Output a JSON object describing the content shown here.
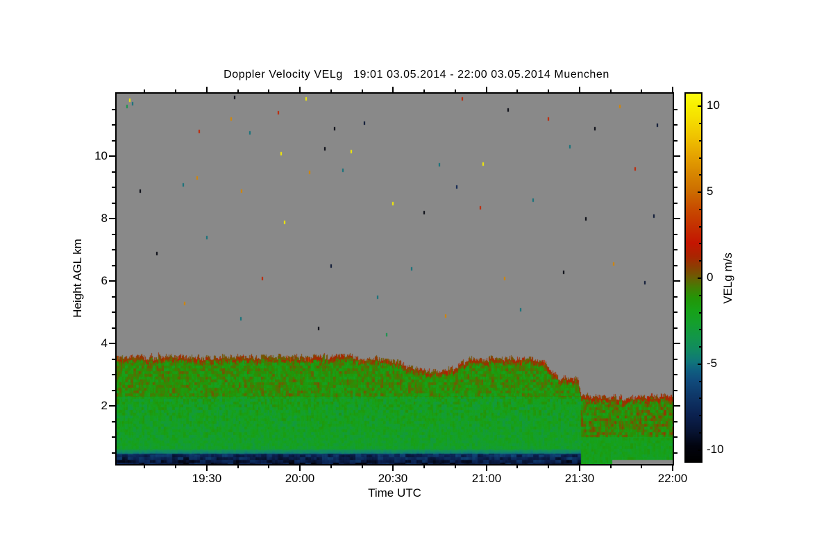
{
  "chart_data": {
    "type": "heatmap",
    "title": "Doppler Velocity VELg   19:01 03.05.2014 - 22:00 03.05.2014 Muenchen",
    "xlabel": "Time UTC",
    "ylabel": "Height AGL km",
    "colorbar_label": "VELg m/s",
    "x_range_utc": [
      "19:01",
      "22:00"
    ],
    "y_range_km": [
      0.13,
      12.0
    ],
    "value_range_ms": [
      -10.7,
      10.7
    ],
    "no_data_color": "#898989",
    "background_color": "#ffffff",
    "grid": false,
    "legend_position": "right-colorbar",
    "x_major_ticks": [
      {
        "t_min": 30,
        "label": "19:30"
      },
      {
        "t_min": 60,
        "label": "20:00"
      },
      {
        "t_min": 90,
        "label": "20:30"
      },
      {
        "t_min": 120,
        "label": "21:00"
      },
      {
        "t_min": 150,
        "label": "21:30"
      },
      {
        "t_min": 180,
        "label": "22:00"
      }
    ],
    "x_minor_ticks_min": [
      10,
      20,
      40,
      50,
      70,
      80,
      100,
      110,
      130,
      140,
      160,
      170
    ],
    "y_major_ticks": [
      {
        "h_km": 2,
        "label": "2"
      },
      {
        "h_km": 4,
        "label": "4"
      },
      {
        "h_km": 6,
        "label": "6"
      },
      {
        "h_km": 8,
        "label": "8"
      },
      {
        "h_km": 10,
        "label": "10"
      }
    ],
    "y_minor_ticks_km": [
      0.5,
      1,
      1.5,
      2.5,
      3,
      3.5,
      4.5,
      5,
      5.5,
      6.5,
      7,
      7.5,
      8.5,
      9,
      9.5,
      10.5,
      11,
      11.5
    ],
    "colorbar_ticks": [
      {
        "v": 10,
        "label": "10"
      },
      {
        "v": 5,
        "label": "5"
      },
      {
        "v": 0,
        "label": "0"
      },
      {
        "v": -5,
        "label": "-5"
      },
      {
        "v": -10,
        "label": "-10"
      }
    ],
    "colorbar_minor_step": 1,
    "colormap_stops": [
      {
        "v": -10.7,
        "c": "#000000"
      },
      {
        "v": -9.8,
        "c": "#02040f"
      },
      {
        "v": -9.0,
        "c": "#071331"
      },
      {
        "v": -8.0,
        "c": "#0b2150"
      },
      {
        "v": -7.0,
        "c": "#0e3566"
      },
      {
        "v": -6.0,
        "c": "#104b7c"
      },
      {
        "v": -5.4,
        "c": "#0f5f80"
      },
      {
        "v": -4.9,
        "c": "#10767a"
      },
      {
        "v": -4.2,
        "c": "#118a60"
      },
      {
        "v": -3.4,
        "c": "#129747"
      },
      {
        "v": -2.6,
        "c": "#14a02b"
      },
      {
        "v": -1.9,
        "c": "#17a117"
      },
      {
        "v": -1.2,
        "c": "#239507"
      },
      {
        "v": -0.6,
        "c": "#417f04"
      },
      {
        "v": 0.0,
        "c": "#6b5e03"
      },
      {
        "v": 0.6,
        "c": "#8a3f02"
      },
      {
        "v": 1.2,
        "c": "#a82501"
      },
      {
        "v": 2.0,
        "c": "#c41501"
      },
      {
        "v": 2.8,
        "c": "#c42b01"
      },
      {
        "v": 4.0,
        "c": "#c84b00"
      },
      {
        "v": 5.0,
        "c": "#cc6c00"
      },
      {
        "v": 6.0,
        "c": "#d78500"
      },
      {
        "v": 7.0,
        "c": "#e4a000"
      },
      {
        "v": 8.0,
        "c": "#eebd00"
      },
      {
        "v": 9.0,
        "c": "#f4d800"
      },
      {
        "v": 10.0,
        "c": "#f8ef00"
      },
      {
        "v": 10.7,
        "c": "#fbfb10"
      }
    ],
    "cloud_top_profile_min_km": [
      [
        1,
        3.6
      ],
      [
        10,
        3.58
      ],
      [
        20,
        3.62
      ],
      [
        30,
        3.56
      ],
      [
        40,
        3.6
      ],
      [
        50,
        3.58
      ],
      [
        60,
        3.55
      ],
      [
        70,
        3.6
      ],
      [
        80,
        3.56
      ],
      [
        88,
        3.5
      ],
      [
        94,
        3.3
      ],
      [
        100,
        3.12
      ],
      [
        106,
        3.1
      ],
      [
        111,
        3.3
      ],
      [
        114,
        3.5
      ],
      [
        125,
        3.55
      ],
      [
        135,
        3.5
      ],
      [
        139,
        3.42
      ],
      [
        141,
        3.1
      ],
      [
        143,
        2.92
      ],
      [
        148,
        2.88
      ],
      [
        149.5,
        2.85
      ],
      [
        150.5,
        2.35
      ],
      [
        160,
        2.3
      ],
      [
        166,
        2.28
      ],
      [
        172,
        2.35
      ],
      [
        179,
        2.3
      ]
    ],
    "layers": {
      "fringe_depth_km": 0.16,
      "fringe_v": 0.6,
      "fringe_noise": 1.1,
      "upper_min_h": 2.3,
      "upper_mottle_base": -1.1,
      "upper_mottle_noise": 1.7,
      "mid_min_h": 0.62,
      "mid_base": -2.1,
      "mid_noise": 1.15,
      "teal_min_h": 0.47,
      "teal_top_v": -3.6,
      "teal_bot_v": -4.8,
      "teal_noise": 0.5,
      "bottom_base": -7.3,
      "bottom_noise": 1.8,
      "bottom_band_end_min": 150.5,
      "right_section_start_min": 150.5,
      "right_upper_min_h": 1.0,
      "right_upper_base": -0.9,
      "right_upper_noise": 2.0,
      "right_lower_base": -2.1,
      "right_lower_noise": 1.0,
      "gray_strip_start_min": 160.5,
      "gray_strip_top_km": 0.28
    },
    "noise_specks_t_h_v": [
      [
        5.2,
        11.8,
        10
      ],
      [
        6.1,
        11.7,
        -5
      ],
      [
        4.4,
        11.6,
        -3.5
      ],
      [
        39,
        11.9,
        -10
      ],
      [
        53,
        11.4,
        2.5
      ],
      [
        37.9,
        11.2,
        6
      ],
      [
        27.6,
        10.8,
        2.5
      ],
      [
        43.9,
        10.75,
        -5
      ],
      [
        22.5,
        9.1,
        -5
      ],
      [
        26.9,
        9.3,
        6
      ],
      [
        8.6,
        8.9,
        -10
      ],
      [
        41.2,
        8.9,
        6
      ],
      [
        62,
        11.84,
        10
      ],
      [
        112.3,
        11.84,
        2.5
      ],
      [
        71.2,
        10.9,
        -10
      ],
      [
        80.8,
        11.07,
        -9
      ],
      [
        68,
        10.24,
        -10
      ],
      [
        76.5,
        10.16,
        10
      ],
      [
        104.9,
        9.73,
        -5
      ],
      [
        119,
        9.76,
        10
      ],
      [
        73.9,
        9.56,
        -5
      ],
      [
        63.1,
        9.49,
        6
      ],
      [
        110.5,
        9.02,
        -8
      ],
      [
        127,
        11.5,
        -10
      ],
      [
        140,
        11.2,
        2.5
      ],
      [
        155,
        10.9,
        -10
      ],
      [
        163,
        11.6,
        6
      ],
      [
        175,
        11.0,
        -9
      ],
      [
        147,
        10.3,
        -5
      ],
      [
        168,
        9.6,
        2.5
      ],
      [
        90,
        8.5,
        10
      ],
      [
        100,
        8.2,
        -10
      ],
      [
        118,
        8.35,
        2.5
      ],
      [
        135,
        8.6,
        -5
      ],
      [
        152,
        8.0,
        -10
      ],
      [
        174,
        8.1,
        -9
      ],
      [
        55,
        7.9,
        10
      ],
      [
        30,
        7.4,
        -5
      ],
      [
        14,
        6.9,
        -10
      ],
      [
        48,
        6.1,
        2.5
      ],
      [
        70,
        6.5,
        -9
      ],
      [
        96,
        6.4,
        -5
      ],
      [
        126,
        6.1,
        6
      ],
      [
        145,
        6.3,
        -10
      ],
      [
        161,
        6.55,
        6
      ],
      [
        171,
        5.95,
        -9
      ],
      [
        23,
        5.3,
        6
      ],
      [
        41,
        4.8,
        -5
      ],
      [
        66,
        4.5,
        -10
      ],
      [
        85,
        5.5,
        -5
      ],
      [
        107,
        4.9,
        6
      ],
      [
        131,
        5.1,
        -5
      ],
      [
        88,
        4.3,
        -3.5
      ],
      [
        54,
        10.1,
        10
      ]
    ],
    "noise_seed": 42
  }
}
